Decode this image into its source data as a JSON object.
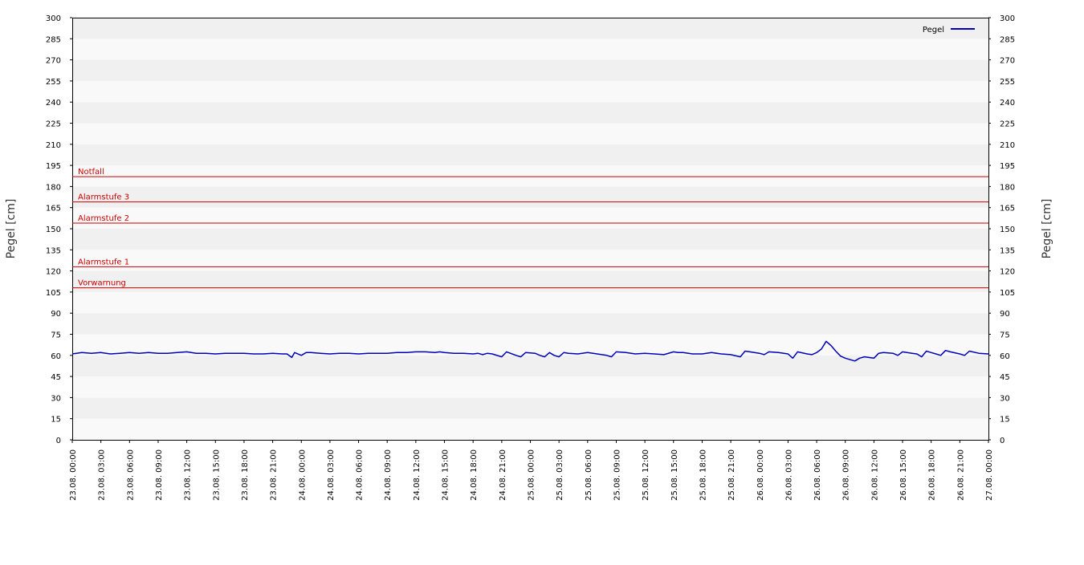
{
  "chart_data": {
    "type": "line",
    "title": "",
    "ylabel_left": "Pegel [cm]",
    "ylabel_right": "Pegel [cm]",
    "xlabel": "",
    "ylim": [
      0,
      300
    ],
    "y_ticks": [
      0,
      15,
      30,
      45,
      60,
      75,
      90,
      105,
      120,
      135,
      150,
      165,
      180,
      195,
      210,
      225,
      240,
      255,
      270,
      285,
      300
    ],
    "x_range_hours": [
      0,
      96
    ],
    "x_tick_labels": [
      "23.08. 00:00",
      "23.08. 03:00",
      "23.08. 06:00",
      "23.08. 09:00",
      "23.08. 12:00",
      "23.08. 15:00",
      "23.08. 18:00",
      "23.08. 21:00",
      "24.08. 00:00",
      "24.08. 03:00",
      "24.08. 06:00",
      "24.08. 09:00",
      "24.08. 12:00",
      "24.08. 15:00",
      "24.08. 18:00",
      "24.08. 21:00",
      "25.08. 00:00",
      "25.08. 03:00",
      "25.08. 06:00",
      "25.08. 09:00",
      "25.08. 12:00",
      "25.08. 15:00",
      "25.08. 18:00",
      "25.08. 21:00",
      "26.08. 00:00",
      "26.08. 03:00",
      "26.08. 06:00",
      "26.08. 09:00",
      "26.08. 12:00",
      "26.08. 15:00",
      "26.08. 18:00",
      "26.08. 21:00",
      "27.08. 00:00"
    ],
    "grid": "alternating horizontal bands",
    "legend": {
      "placement": "top-right",
      "entries": [
        {
          "label": "Pegel",
          "color": "#0000bb"
        }
      ]
    },
    "thresholds": [
      {
        "label": "Notfall",
        "value": 187,
        "color": "#cc0000"
      },
      {
        "label": "Alarmstufe 3",
        "value": 169,
        "color": "#cc0000"
      },
      {
        "label": "Alarmstufe 2",
        "value": 154,
        "color": "#cc0000"
      },
      {
        "label": "Alarmstufe 1",
        "value": 123,
        "color": "#cc0000"
      },
      {
        "label": "Vorwarnung",
        "value": 108,
        "color": "#cc0000"
      }
    ],
    "series": [
      {
        "name": "Pegel",
        "color": "#0000bb",
        "x_unit": "hours since 23.08. 00:00",
        "points": [
          [
            0,
            61
          ],
          [
            1,
            62
          ],
          [
            2,
            61.5
          ],
          [
            3,
            62
          ],
          [
            4,
            61
          ],
          [
            5,
            61.5
          ],
          [
            6,
            62
          ],
          [
            7,
            61.5
          ],
          [
            8,
            62
          ],
          [
            9,
            61.5
          ],
          [
            10,
            61.5
          ],
          [
            11,
            62
          ],
          [
            12,
            62.5
          ],
          [
            13,
            61.5
          ],
          [
            14,
            61.5
          ],
          [
            15,
            61
          ],
          [
            16,
            61.5
          ],
          [
            17,
            61.5
          ],
          [
            18,
            61.5
          ],
          [
            19,
            61
          ],
          [
            20,
            61
          ],
          [
            21,
            61.5
          ],
          [
            22,
            61
          ],
          [
            22.5,
            61
          ],
          [
            23,
            58.5
          ],
          [
            23.3,
            62
          ],
          [
            24,
            60
          ],
          [
            24.5,
            62
          ],
          [
            25,
            62
          ],
          [
            26,
            61.5
          ],
          [
            27,
            61
          ],
          [
            28,
            61.5
          ],
          [
            29,
            61.5
          ],
          [
            30,
            61
          ],
          [
            31,
            61.5
          ],
          [
            32,
            61.5
          ],
          [
            33,
            61.5
          ],
          [
            34,
            62
          ],
          [
            35,
            62
          ],
          [
            36,
            62.5
          ],
          [
            37,
            62.5
          ],
          [
            38,
            62
          ],
          [
            38.5,
            62.5
          ],
          [
            39,
            62
          ],
          [
            40,
            61.5
          ],
          [
            41,
            61.5
          ],
          [
            42,
            61
          ],
          [
            42.5,
            61.5
          ],
          [
            43,
            60.5
          ],
          [
            43.5,
            61.5
          ],
          [
            44,
            61
          ],
          [
            45,
            59
          ],
          [
            45.5,
            62.5
          ],
          [
            46.5,
            60
          ],
          [
            47,
            59
          ],
          [
            47.5,
            62
          ],
          [
            48.5,
            61.5
          ],
          [
            49,
            60
          ],
          [
            49.5,
            59
          ],
          [
            50,
            62
          ],
          [
            50.5,
            60
          ],
          [
            51,
            59
          ],
          [
            51.5,
            62
          ],
          [
            52,
            61.5
          ],
          [
            53,
            61
          ],
          [
            54,
            62
          ],
          [
            55,
            61
          ],
          [
            56,
            60
          ],
          [
            56.5,
            59
          ],
          [
            57,
            62.5
          ],
          [
            58,
            62
          ],
          [
            59,
            61
          ],
          [
            60,
            61.5
          ],
          [
            61,
            61
          ],
          [
            62,
            60.5
          ],
          [
            63,
            62.5
          ],
          [
            63.5,
            62
          ],
          [
            64,
            62
          ],
          [
            65,
            61
          ],
          [
            66,
            61
          ],
          [
            67,
            62
          ],
          [
            68,
            61
          ],
          [
            69,
            60.5
          ],
          [
            70,
            59
          ],
          [
            70.5,
            63
          ],
          [
            71,
            62.5
          ],
          [
            72,
            61.5
          ],
          [
            72.5,
            60.5
          ],
          [
            73,
            62.5
          ],
          [
            74,
            62
          ],
          [
            75,
            61
          ],
          [
            75.5,
            58
          ],
          [
            76,
            62.5
          ],
          [
            77,
            61
          ],
          [
            77.5,
            60.5
          ],
          [
            78,
            62
          ],
          [
            78.5,
            64.5
          ],
          [
            79,
            70
          ],
          [
            79.5,
            67
          ],
          [
            80,
            63
          ],
          [
            80.5,
            59.5
          ],
          [
            81,
            58
          ],
          [
            82,
            56
          ],
          [
            82.5,
            58
          ],
          [
            83,
            59
          ],
          [
            84,
            58
          ],
          [
            84.5,
            61.5
          ],
          [
            85,
            62
          ],
          [
            86,
            61.5
          ],
          [
            86.5,
            60
          ],
          [
            87,
            62.5
          ],
          [
            88,
            61.5
          ],
          [
            88.5,
            61
          ],
          [
            89,
            59
          ],
          [
            89.5,
            63
          ],
          [
            90,
            62
          ],
          [
            90.5,
            61
          ],
          [
            91,
            60
          ],
          [
            91.5,
            63.5
          ],
          [
            92,
            62.5
          ],
          [
            93,
            61
          ],
          [
            93.5,
            60
          ],
          [
            94,
            63
          ],
          [
            95,
            61.5
          ],
          [
            96,
            61
          ]
        ]
      }
    ]
  }
}
